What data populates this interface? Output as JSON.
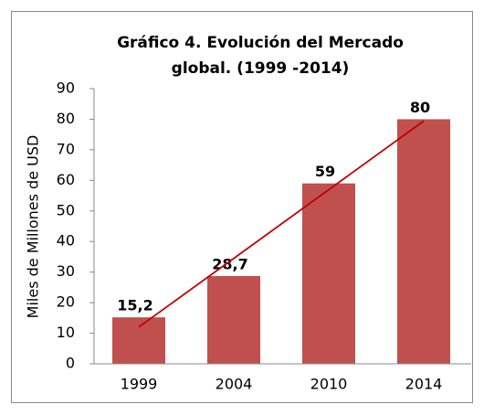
{
  "chart_data": {
    "type": "bar",
    "title": [
      "Gráfico 4. Evolución del Mercado",
      "global. (1999 -2014)"
    ],
    "y_label": "Miles de Millones de USD",
    "categories": [
      "1999",
      "2004",
      "2010",
      "2014"
    ],
    "values": [
      15.2,
      28.7,
      59,
      80
    ],
    "value_labels": [
      "15,2",
      "28,7",
      "59",
      "80"
    ],
    "color": "#c0504d",
    "trendline": {
      "type": "linear",
      "color": "#c00000"
    },
    "ylim": [
      0,
      90
    ],
    "yticks": [
      0,
      10,
      20,
      30,
      40,
      50,
      60,
      70,
      80,
      90
    ],
    "grid": false
  }
}
